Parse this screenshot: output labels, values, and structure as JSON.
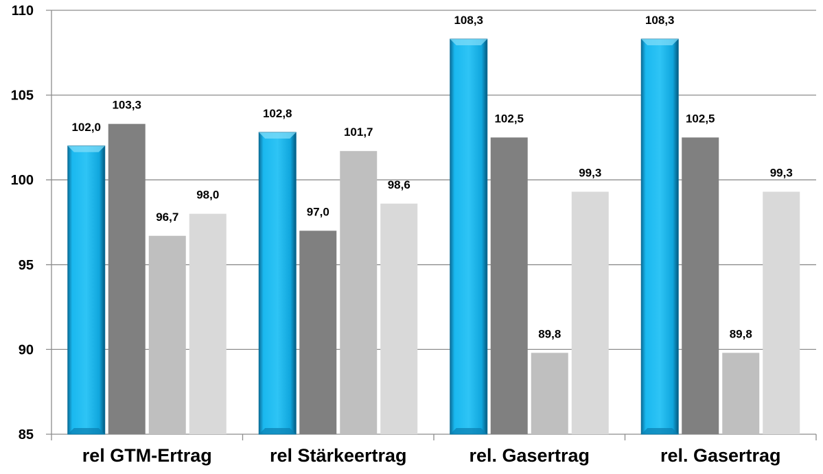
{
  "chart_data": {
    "type": "bar",
    "categories": [
      "rel GTM-Ertrag",
      "rel Stärkeertrag",
      "rel. Gasertrag",
      "rel. Gasertrag"
    ],
    "series": [
      {
        "values": [
          102.0,
          102.8,
          108.3,
          108.3
        ],
        "color": "#1ab8ef",
        "labels": [
          "102,0",
          "102,8",
          "108,3",
          "108,3"
        ]
      },
      {
        "values": [
          103.3,
          97.0,
          102.5,
          102.5
        ],
        "color": "#808080",
        "labels": [
          "103,3",
          "97,0",
          "102,5",
          "102,5"
        ]
      },
      {
        "values": [
          96.7,
          101.7,
          89.8,
          89.8
        ],
        "color": "#bfbfbf",
        "labels": [
          "96,7",
          "101,7",
          "89,8",
          "89,8"
        ]
      },
      {
        "values": [
          98.0,
          98.6,
          99.3,
          99.3
        ],
        "color": "#d9d9d9",
        "labels": [
          "98,0",
          "98,6",
          "99,3",
          "99,3"
        ]
      }
    ],
    "ylim": [
      85,
      110
    ],
    "yticks": [
      85,
      90,
      95,
      100,
      105,
      110
    ],
    "grid": true,
    "legend": "none",
    "title": "",
    "xlabel": "",
    "ylabel": ""
  }
}
